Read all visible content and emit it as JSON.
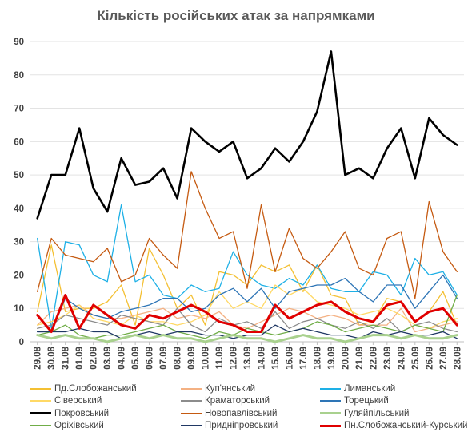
{
  "chart_data": {
    "type": "line",
    "title": "Кількість російських атак за напрямками",
    "xlabel": "",
    "ylabel": "",
    "ylim": [
      0,
      90
    ],
    "yticks": [
      0,
      10,
      20,
      30,
      40,
      50,
      60,
      70,
      80,
      90
    ],
    "grid": true,
    "legend_position": "bottom",
    "categories": [
      "29.08",
      "30.08",
      "31.08",
      "01.09",
      "02.09",
      "03.09",
      "04.09",
      "05.09",
      "06.09",
      "07.09",
      "08.09",
      "09.09",
      "10.09",
      "11.09",
      "12.09",
      "13.09",
      "14.09",
      "15.09",
      "16.09",
      "17.09",
      "18.09",
      "19.09",
      "20.09",
      "21.09",
      "22.09",
      "23.09",
      "24.09",
      "25.09",
      "26.09",
      "27.09",
      "28.09"
    ],
    "series": [
      {
        "name": "Пд.Слобожанський",
        "color": "#f4c033",
        "width": 1.3,
        "values": [
          9,
          29,
          9,
          10,
          10,
          12,
          17,
          5,
          28,
          20,
          10,
          14,
          5,
          21,
          20,
          17,
          23,
          21,
          23,
          15,
          23,
          14,
          13,
          5,
          6,
          13,
          12,
          6,
          9,
          15,
          5
        ]
      },
      {
        "name": "Куп'янський",
        "color": "#f4b183",
        "width": 1.3,
        "values": [
          5,
          9,
          10,
          11,
          8,
          7,
          7,
          8,
          9,
          10,
          7,
          8,
          7,
          9,
          5,
          4,
          6,
          8,
          10,
          9,
          7,
          8,
          7,
          5,
          5,
          5,
          10,
          3,
          4,
          5,
          6
        ]
      },
      {
        "name": "Лиманський",
        "color": "#1eb0e6",
        "width": 1.3,
        "values": [
          31,
          4,
          30,
          29,
          20,
          18,
          41,
          18,
          20,
          14,
          13,
          17,
          15,
          16,
          27,
          20,
          17,
          16,
          19,
          17,
          23,
          16,
          15,
          15,
          21,
          20,
          14,
          25,
          20,
          21,
          14
        ]
      },
      {
        "name": "Сіверський",
        "color": "#ffd966",
        "width": 1.3,
        "values": [
          5,
          6,
          8,
          11,
          7,
          6,
          5,
          8,
          6,
          6,
          5,
          6,
          8,
          15,
          10,
          12,
          10,
          17,
          14,
          16,
          12,
          11,
          10,
          8,
          9,
          10,
          8,
          5,
          4,
          6,
          7
        ]
      },
      {
        "name": "Краматорський",
        "color": "#8c8c8c",
        "width": 1.3,
        "values": [
          4,
          5,
          8,
          7,
          6,
          5,
          8,
          7,
          6,
          5,
          10,
          5,
          3,
          7,
          5,
          6,
          4,
          9,
          4,
          6,
          7,
          5,
          4,
          6,
          4,
          7,
          3,
          5,
          6,
          4,
          3
        ]
      },
      {
        "name": "Торецький",
        "color": "#2e75b6",
        "width": 1.3,
        "values": [
          3,
          3,
          13,
          10,
          8,
          7,
          9,
          10,
          11,
          13,
          13,
          9,
          10,
          14,
          16,
          12,
          16,
          10,
          15,
          16,
          17,
          17,
          19,
          15,
          12,
          17,
          17,
          10,
          15,
          20,
          13
        ]
      },
      {
        "name": "Покровський",
        "color": "#000000",
        "width": 2.6,
        "values": [
          37,
          50,
          50,
          64,
          46,
          39,
          55,
          47,
          48,
          52,
          43,
          64,
          60,
          57,
          60,
          49,
          52,
          58,
          54,
          60,
          69,
          87,
          50,
          52,
          49,
          58,
          64,
          49,
          67,
          62,
          59
        ]
      },
      {
        "name": "Новопавлівський",
        "color": "#c55a11",
        "width": 1.3,
        "values": [
          15,
          31,
          26,
          25,
          24,
          28,
          18,
          20,
          31,
          26,
          22,
          51,
          40,
          31,
          33,
          16,
          41,
          21,
          34,
          25,
          22,
          27,
          33,
          22,
          20,
          31,
          33,
          13,
          42,
          27,
          21
        ]
      },
      {
        "name": "Гуляйпільський",
        "color": "#a9d18e",
        "width": 3.0,
        "values": [
          2,
          1,
          2,
          1,
          1,
          0,
          1,
          2,
          1,
          2,
          1,
          1,
          0,
          1,
          2,
          1,
          1,
          0,
          1,
          2,
          1,
          1,
          0,
          1,
          2,
          2,
          1,
          2,
          1,
          1,
          2
        ]
      },
      {
        "name": "Оріхівський",
        "color": "#70ad47",
        "width": 1.3,
        "values": [
          2,
          3,
          5,
          2,
          1,
          2,
          2,
          3,
          4,
          5,
          3,
          2,
          1,
          3,
          2,
          4,
          3,
          2,
          3,
          4,
          6,
          5,
          3,
          4,
          5,
          4,
          3,
          5,
          4,
          3,
          14
        ]
      },
      {
        "name": "Придніпровський",
        "color": "#203864",
        "width": 1.3,
        "values": [
          3,
          3,
          3,
          4,
          3,
          3,
          1,
          2,
          3,
          2,
          3,
          3,
          2,
          2,
          1,
          2,
          2,
          5,
          3,
          4,
          3,
          2,
          2,
          1,
          3,
          2,
          3,
          2,
          2,
          3,
          1
        ]
      },
      {
        "name": "Пн.Слобожанський-Курський",
        "color": "#e00000",
        "width": 3.0,
        "values": [
          8,
          3,
          14,
          4,
          11,
          8,
          5,
          4,
          8,
          7,
          9,
          11,
          9,
          6,
          5,
          3,
          3,
          11,
          7,
          9,
          11,
          12,
          9,
          7,
          6,
          11,
          12,
          6,
          9,
          10,
          5
        ]
      }
    ]
  }
}
